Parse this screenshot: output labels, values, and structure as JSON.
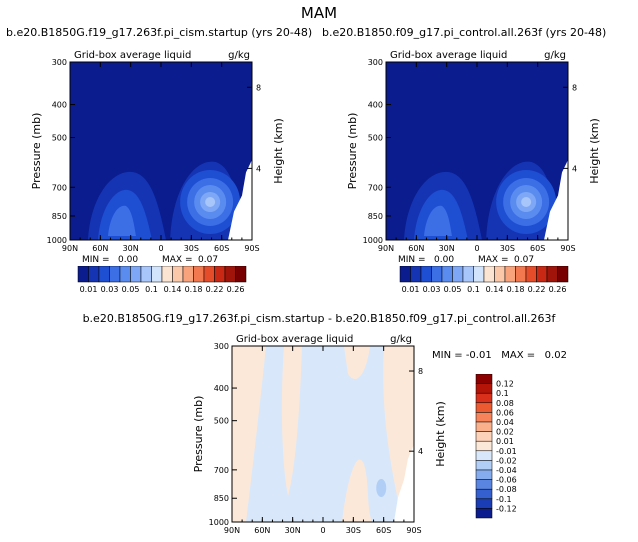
{
  "page_title": "MAM",
  "chart_data": [
    {
      "type": "heatmap",
      "id": "p1",
      "title": "b.e20.B1850G.f19_g17.263f.pi_cism.startup (yrs 20-48)",
      "subtitle": "Grid-box average liquid",
      "units": "g/kg",
      "ylabel": "Pressure (mb)",
      "ylabel_right": "Height (km)",
      "x_ticks": [
        "90N",
        "60N",
        "30N",
        "0",
        "30S",
        "60S",
        "90S"
      ],
      "y_ticks": [
        "300",
        "400",
        "500",
        "700",
        "850",
        "1000"
      ],
      "y_ticks_right": [
        "8",
        "4"
      ],
      "ylim": [
        1000,
        300
      ],
      "min_label": "MIN =",
      "min_value": "0.00",
      "max_label": "MAX =",
      "max_value": "0.07"
    },
    {
      "type": "heatmap",
      "id": "p2",
      "title": "b.e20.B1850.f09_g17.pi_control.all.263f (yrs 20-48)",
      "subtitle": "Grid-box average liquid",
      "units": "g/kg",
      "ylabel": "Pressure (mb)",
      "ylabel_right": "Height (km)",
      "x_ticks": [
        "90N",
        "60N",
        "30N",
        "0",
        "30S",
        "60S",
        "90S"
      ],
      "y_ticks": [
        "300",
        "400",
        "500",
        "700",
        "850",
        "1000"
      ],
      "y_ticks_right": [
        "8",
        "4"
      ],
      "ylim": [
        1000,
        300
      ],
      "min_label": "MIN =",
      "min_value": "0.00",
      "max_label": "MAX =",
      "max_value": "0.07"
    },
    {
      "type": "heatmap",
      "id": "p3",
      "title": "b.e20.B1850G.f19_g17.263f.pi_cism.startup - b.e20.B1850.f09_g17.pi_control.all.263f",
      "subtitle": "Grid-box average liquid",
      "units": "g/kg",
      "ylabel": "Pressure (mb)",
      "ylabel_right": "Height (km)",
      "x_ticks": [
        "90N",
        "60N",
        "30N",
        "0",
        "30S",
        "60S",
        "90S"
      ],
      "y_ticks": [
        "300",
        "400",
        "500",
        "700",
        "850",
        "1000"
      ],
      "y_ticks_right": [
        "8",
        "4"
      ],
      "ylim": [
        1000,
        300
      ],
      "min_label": "MIN =",
      "min_value": "-0.01",
      "max_label": "MAX =",
      "max_value": "0.02"
    }
  ],
  "colorbar_abs": {
    "labels": [
      "0.01",
      "0.03",
      "0.05",
      "0.1",
      "0.14",
      "0.18",
      "0.22",
      "0.26"
    ],
    "colors": [
      "#0a1c8e",
      "#1434b4",
      "#1e4ed2",
      "#3c6ee6",
      "#5a8cf0",
      "#7ea8f6",
      "#a8c6fa",
      "#d2e4fc",
      "#fce4d2",
      "#fcc8aa",
      "#f8a37c",
      "#f27850",
      "#e44c2a",
      "#c82814",
      "#a0140a",
      "#780000"
    ]
  },
  "colorbar_diff": {
    "labels": [
      "0.12",
      "0.1",
      "0.08",
      "0.06",
      "0.04",
      "0.02",
      "0.01",
      "-0.01",
      "-0.02",
      "-0.04",
      "-0.06",
      "-0.08",
      "-0.1",
      "-0.12"
    ],
    "colors": [
      "#8c0000",
      "#b41408",
      "#d8301a",
      "#ec5a32",
      "#f6835a",
      "#fab08a",
      "#fcd2b8",
      "#fce8d8",
      "#d8e8fa",
      "#b0cef6",
      "#84acee",
      "#5a86e2",
      "#3460d0",
      "#1a3cb4",
      "#0a1c8e"
    ]
  },
  "palette": {
    "deep_blue": "#0a1c8e",
    "blue2": "#1434b4",
    "blue3": "#1e4ed2",
    "blue4": "#3c6ee6",
    "blue5": "#5a8cf0",
    "blue6": "#7ea8f6",
    "blue7": "#a8c6fa",
    "diff_bg": "#d8e8fa",
    "diff_pos": "#fce8d8",
    "diff_neg": "#b0cef6"
  }
}
